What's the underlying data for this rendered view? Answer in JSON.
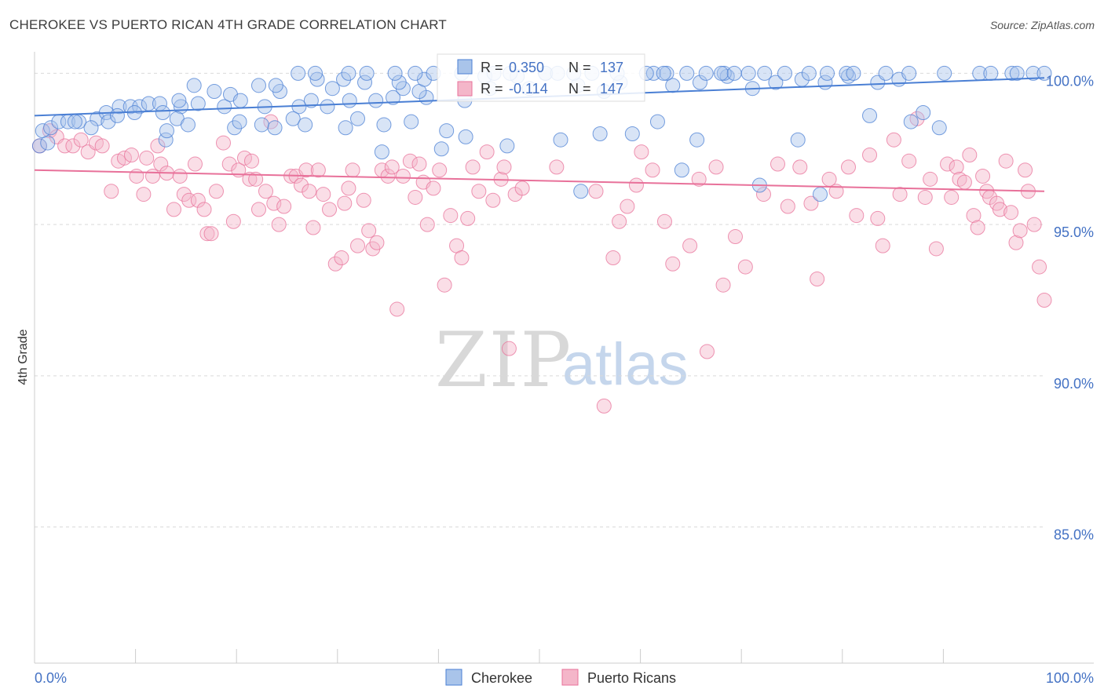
{
  "title": "CHEROKEE VS PUERTO RICAN 4TH GRADE CORRELATION CHART",
  "source": "Source: ZipAtlas.com",
  "colors": {
    "blue": "#4a7fd4",
    "blue_fill": "#a9c4ea",
    "pink": "#e8719a",
    "pink_fill": "#f4b6c9",
    "axis_text": "#4472c4"
  },
  "legend_box": {
    "rows": [
      {
        "series": "Cherokee",
        "r_label": "R = ",
        "r_value": "0.350",
        "n_label": "N = ",
        "n_value": "137"
      },
      {
        "series": "Puerto Ricans",
        "r_label": "R = ",
        "r_value": "-0.114",
        "n_label": "N = ",
        "n_value": "147"
      }
    ]
  },
  "watermark": {
    "zip": "ZIP",
    "atlas": "atlas"
  },
  "chart_data": {
    "type": "scatter",
    "title": "CHEROKEE VS PUERTO RICAN 4TH GRADE CORRELATION CHART",
    "xlabel": "",
    "ylabel": "4th Grade",
    "xlim": [
      0,
      100
    ],
    "ylim": [
      80.5,
      100.4
    ],
    "x_tick_labels": [
      "0.0%",
      "100.0%"
    ],
    "y_ticks": [
      100,
      95,
      90,
      85
    ],
    "y_tick_labels": [
      "100.0%",
      "95.0%",
      "90.0%",
      "85.0%"
    ],
    "legend": [
      "Cherokee",
      "Puerto Ricans"
    ],
    "series": [
      {
        "name": "Cherokee",
        "r": 0.35,
        "n": 137,
        "trend": [
          [
            0,
            98.6
          ],
          [
            100,
            99.85
          ]
        ],
        "points": [
          [
            0.5,
            97.6
          ],
          [
            0.8,
            98.1
          ],
          [
            1.6,
            98.2
          ],
          [
            2.4,
            98.4
          ],
          [
            3.3,
            98.4
          ],
          [
            4.4,
            98.4
          ],
          [
            6.2,
            98.5
          ],
          [
            7.1,
            98.7
          ],
          [
            8.4,
            98.9
          ],
          [
            9.5,
            98.9
          ],
          [
            10.4,
            98.9
          ],
          [
            11.3,
            99.0
          ],
          [
            12.4,
            99.0
          ],
          [
            14.5,
            98.9
          ],
          [
            16.2,
            99.0
          ],
          [
            18.8,
            98.9
          ],
          [
            22.8,
            98.9
          ],
          [
            26.2,
            98.9
          ],
          [
            29.0,
            98.9
          ],
          [
            31.2,
            99.1
          ],
          [
            35.5,
            99.2
          ],
          [
            38.8,
            99.2
          ],
          [
            4.0,
            98.4
          ],
          [
            5.6,
            98.2
          ],
          [
            7.3,
            98.4
          ],
          [
            8.2,
            98.6
          ],
          [
            9.9,
            98.7
          ],
          [
            12.7,
            98.7
          ],
          [
            14.1,
            98.5
          ],
          [
            15.2,
            98.3
          ],
          [
            19.8,
            98.2
          ],
          [
            22.5,
            98.3
          ],
          [
            23.8,
            98.2
          ],
          [
            25.6,
            98.5
          ],
          [
            26.8,
            98.3
          ],
          [
            30.8,
            98.2
          ],
          [
            34.6,
            98.3
          ],
          [
            37.3,
            98.4
          ],
          [
            40.8,
            98.1
          ],
          [
            42.7,
            97.9
          ],
          [
            46.8,
            97.6
          ],
          [
            52.1,
            97.8
          ],
          [
            56.0,
            98.0
          ],
          [
            59.2,
            98.0
          ],
          [
            61.7,
            98.4
          ],
          [
            75.6,
            97.8
          ],
          [
            65.6,
            97.8
          ],
          [
            54.1,
            96.1
          ],
          [
            64.1,
            96.8
          ],
          [
            71.8,
            96.3
          ],
          [
            77.8,
            96.0
          ],
          [
            82.7,
            98.6
          ],
          [
            86.8,
            98.4
          ],
          [
            88.0,
            98.7
          ],
          [
            89.6,
            98.2
          ],
          [
            32.0,
            98.5
          ],
          [
            20.3,
            98.4
          ],
          [
            34.4,
            97.4
          ],
          [
            40.3,
            97.5
          ],
          [
            13.0,
            97.8
          ],
          [
            1.3,
            97.7
          ],
          [
            13.1,
            98.1
          ],
          [
            14.3,
            99.1
          ],
          [
            17.8,
            99.4
          ],
          [
            19.4,
            99.3
          ],
          [
            20.4,
            99.1
          ],
          [
            22.2,
            99.6
          ],
          [
            24.3,
            99.4
          ],
          [
            27.4,
            99.1
          ],
          [
            29.5,
            99.5
          ],
          [
            33.8,
            99.1
          ],
          [
            36.5,
            99.5
          ],
          [
            38.1,
            99.4
          ],
          [
            42.6,
            99.1
          ],
          [
            45.1,
            99.5
          ],
          [
            49.0,
            99.5
          ],
          [
            53.8,
            99.6
          ],
          [
            56.4,
            99.4
          ],
          [
            58.0,
            99.7
          ],
          [
            63.2,
            99.6
          ],
          [
            65.9,
            99.7
          ],
          [
            68.6,
            99.9
          ],
          [
            71.1,
            99.5
          ],
          [
            73.4,
            99.7
          ],
          [
            76.0,
            99.8
          ],
          [
            78.3,
            99.7
          ],
          [
            80.6,
            99.9
          ],
          [
            83.5,
            99.7
          ],
          [
            85.6,
            99.8
          ],
          [
            15.8,
            99.6
          ],
          [
            23.9,
            99.6
          ],
          [
            28.0,
            99.8
          ],
          [
            30.6,
            99.8
          ],
          [
            32.7,
            99.7
          ],
          [
            36.1,
            99.7
          ],
          [
            38.6,
            99.8
          ],
          [
            44.6,
            99.9
          ],
          [
            47.8,
            99.9
          ],
          [
            50.6,
            100.0
          ],
          [
            53.4,
            100.0
          ],
          [
            55.2,
            100.0
          ],
          [
            61.3,
            100.0
          ],
          [
            62.6,
            100.0
          ],
          [
            64.6,
            100.0
          ],
          [
            68.3,
            100.0
          ],
          [
            70.7,
            100.0
          ],
          [
            74.3,
            100.0
          ],
          [
            76.7,
            100.0
          ],
          [
            80.4,
            100.0
          ],
          [
            84.3,
            100.0
          ],
          [
            86.6,
            100.0
          ],
          [
            90.1,
            100.0
          ],
          [
            93.6,
            100.0
          ],
          [
            94.7,
            100.0
          ],
          [
            96.8,
            100.0
          ],
          [
            98.9,
            100.0
          ],
          [
            97.3,
            100.0
          ],
          [
            100.0,
            100.0
          ],
          [
            26.1,
            100.0
          ],
          [
            27.8,
            100.0
          ],
          [
            31.1,
            100.0
          ],
          [
            32.9,
            100.0
          ],
          [
            35.7,
            100.0
          ],
          [
            37.7,
            100.0
          ],
          [
            39.5,
            100.0
          ],
          [
            42.3,
            100.0
          ],
          [
            45.5,
            100.0
          ],
          [
            47.1,
            100.0
          ],
          [
            50.6,
            100.0
          ],
          [
            51.8,
            100.0
          ],
          [
            57.7,
            100.0
          ],
          [
            60.6,
            100.0
          ],
          [
            62.3,
            100.0
          ],
          [
            66.5,
            100.0
          ],
          [
            68.0,
            100.0
          ],
          [
            69.3,
            100.0
          ],
          [
            72.3,
            100.0
          ],
          [
            78.5,
            100.0
          ],
          [
            81.1,
            100.0
          ]
        ]
      },
      {
        "name": "Puerto Ricans",
        "r": -0.114,
        "n": 147,
        "trend": [
          [
            0,
            96.8
          ],
          [
            100,
            96.1
          ]
        ],
        "points": [
          [
            0.5,
            97.6
          ],
          [
            1.5,
            98.1
          ],
          [
            2.2,
            97.9
          ],
          [
            3.0,
            97.6
          ],
          [
            3.8,
            97.6
          ],
          [
            4.6,
            97.8
          ],
          [
            5.3,
            97.4
          ],
          [
            6.1,
            97.7
          ],
          [
            6.7,
            97.6
          ],
          [
            7.6,
            96.1
          ],
          [
            8.3,
            97.1
          ],
          [
            8.9,
            97.2
          ],
          [
            9.6,
            97.3
          ],
          [
            10.1,
            96.6
          ],
          [
            10.8,
            96.0
          ],
          [
            11.1,
            97.2
          ],
          [
            11.7,
            96.6
          ],
          [
            12.2,
            97.6
          ],
          [
            12.5,
            97.0
          ],
          [
            13.1,
            96.7
          ],
          [
            13.8,
            95.5
          ],
          [
            14.4,
            96.6
          ],
          [
            14.8,
            96.0
          ],
          [
            15.3,
            95.8
          ],
          [
            15.9,
            97.0
          ],
          [
            16.2,
            95.8
          ],
          [
            16.8,
            95.5
          ],
          [
            17.1,
            94.7
          ],
          [
            17.5,
            94.7
          ],
          [
            18.0,
            96.1
          ],
          [
            18.7,
            97.7
          ],
          [
            19.3,
            97.0
          ],
          [
            19.7,
            95.1
          ],
          [
            20.2,
            96.8
          ],
          [
            20.8,
            97.2
          ],
          [
            21.3,
            96.5
          ],
          [
            21.5,
            97.1
          ],
          [
            21.9,
            96.5
          ],
          [
            22.2,
            95.5
          ],
          [
            22.9,
            96.1
          ],
          [
            23.4,
            98.4
          ],
          [
            23.7,
            95.7
          ],
          [
            24.2,
            95.0
          ],
          [
            24.7,
            95.6
          ],
          [
            25.4,
            96.6
          ],
          [
            25.9,
            96.6
          ],
          [
            26.4,
            96.3
          ],
          [
            26.9,
            96.8
          ],
          [
            27.2,
            96.1
          ],
          [
            27.6,
            94.9
          ],
          [
            28.1,
            96.8
          ],
          [
            28.6,
            96.0
          ],
          [
            29.2,
            95.5
          ],
          [
            29.8,
            93.7
          ],
          [
            30.4,
            93.9
          ],
          [
            30.7,
            95.7
          ],
          [
            31.1,
            96.2
          ],
          [
            31.5,
            96.8
          ],
          [
            32.0,
            94.3
          ],
          [
            32.6,
            95.8
          ],
          [
            33.1,
            94.8
          ],
          [
            33.5,
            94.2
          ],
          [
            33.9,
            94.4
          ],
          [
            34.4,
            96.8
          ],
          [
            35.0,
            96.6
          ],
          [
            35.4,
            96.9
          ],
          [
            35.9,
            92.2
          ],
          [
            36.5,
            96.6
          ],
          [
            37.2,
            97.1
          ],
          [
            37.7,
            95.9
          ],
          [
            38.1,
            97.0
          ],
          [
            38.5,
            96.4
          ],
          [
            38.9,
            95.0
          ],
          [
            39.5,
            96.2
          ],
          [
            40.1,
            96.8
          ],
          [
            40.6,
            93.0
          ],
          [
            41.2,
            95.3
          ],
          [
            41.8,
            94.3
          ],
          [
            42.3,
            93.9
          ],
          [
            42.9,
            95.2
          ],
          [
            43.4,
            96.9
          ],
          [
            44.0,
            96.1
          ],
          [
            44.8,
            97.4
          ],
          [
            45.4,
            95.8
          ],
          [
            46.2,
            96.5
          ],
          [
            47.0,
            90.9
          ],
          [
            47.6,
            96.0
          ],
          [
            48.3,
            96.2
          ],
          [
            46.5,
            96.9
          ],
          [
            51.7,
            96.9
          ],
          [
            55.6,
            96.1
          ],
          [
            56.4,
            89.0
          ],
          [
            57.3,
            93.9
          ],
          [
            57.9,
            95.1
          ],
          [
            58.7,
            95.6
          ],
          [
            59.6,
            96.3
          ],
          [
            60.1,
            97.4
          ],
          [
            61.2,
            96.8
          ],
          [
            62.4,
            95.1
          ],
          [
            63.2,
            93.7
          ],
          [
            64.9,
            94.3
          ],
          [
            65.8,
            96.5
          ],
          [
            66.6,
            90.8
          ],
          [
            67.5,
            96.9
          ],
          [
            68.2,
            93.0
          ],
          [
            69.4,
            94.6
          ],
          [
            70.4,
            93.6
          ],
          [
            72.2,
            96.0
          ],
          [
            73.6,
            97.0
          ],
          [
            74.6,
            95.6
          ],
          [
            75.8,
            96.9
          ],
          [
            76.9,
            95.7
          ],
          [
            77.5,
            93.2
          ],
          [
            78.7,
            96.5
          ],
          [
            79.4,
            96.1
          ],
          [
            80.6,
            96.9
          ],
          [
            81.4,
            95.3
          ],
          [
            82.7,
            97.3
          ],
          [
            83.5,
            95.2
          ],
          [
            84.0,
            94.3
          ],
          [
            85.1,
            97.8
          ],
          [
            85.7,
            96.0
          ],
          [
            86.6,
            97.1
          ],
          [
            87.4,
            98.5
          ],
          [
            88.2,
            95.9
          ],
          [
            88.7,
            96.5
          ],
          [
            89.3,
            94.2
          ],
          [
            90.4,
            97.0
          ],
          [
            90.8,
            95.9
          ],
          [
            91.3,
            96.9
          ],
          [
            91.6,
            96.5
          ],
          [
            92.1,
            96.4
          ],
          [
            92.6,
            97.3
          ],
          [
            93.0,
            95.3
          ],
          [
            93.4,
            94.9
          ],
          [
            93.9,
            96.6
          ],
          [
            94.3,
            96.1
          ],
          [
            94.6,
            95.9
          ],
          [
            95.3,
            95.7
          ],
          [
            95.6,
            95.5
          ],
          [
            96.2,
            97.1
          ],
          [
            96.7,
            95.4
          ],
          [
            97.2,
            94.4
          ],
          [
            97.6,
            94.8
          ],
          [
            98.1,
            96.8
          ],
          [
            98.4,
            96.1
          ],
          [
            99.0,
            95.0
          ],
          [
            99.5,
            93.6
          ],
          [
            100.0,
            92.5
          ]
        ]
      }
    ]
  }
}
